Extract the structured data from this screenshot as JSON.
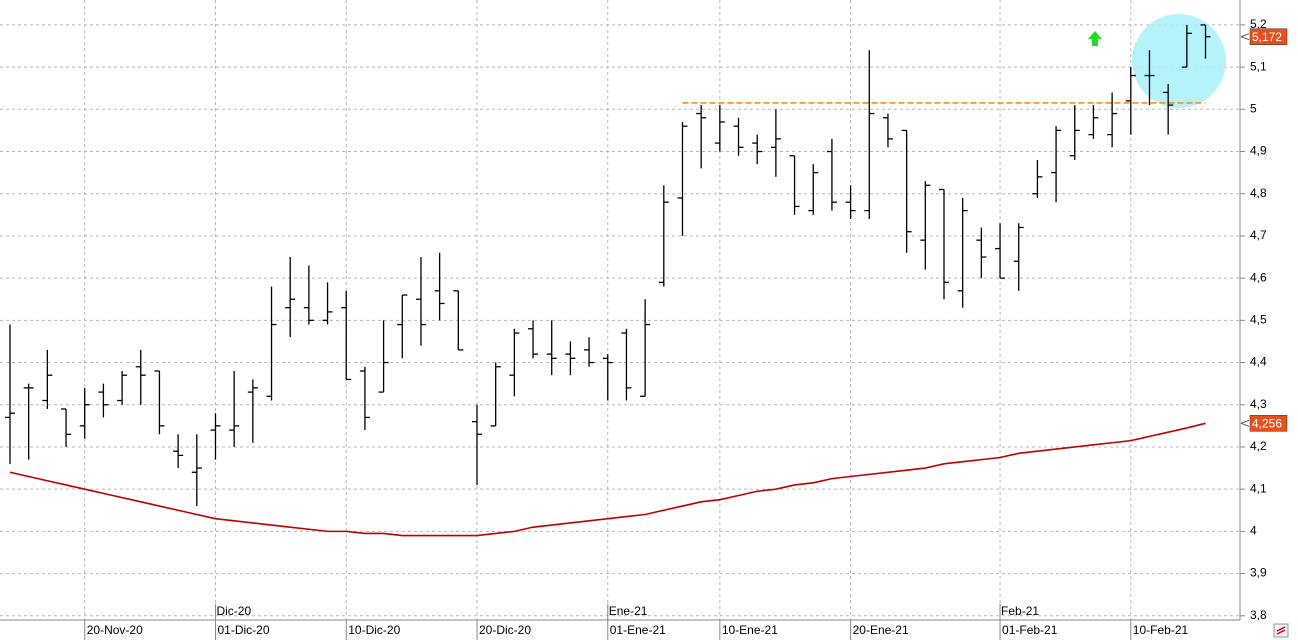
{
  "chart_data": {
    "type": "ohlc",
    "categories": [
      null,
      null,
      null,
      null,
      "20-Nov-20",
      null,
      null,
      null,
      null,
      null,
      null,
      "01-Dic-20",
      null,
      null,
      null,
      null,
      null,
      null,
      "10-Dic-20",
      null,
      null,
      null,
      null,
      null,
      null,
      "20-Dic-20",
      null,
      null,
      null,
      null,
      null,
      null,
      "01-Ene-21",
      null,
      null,
      null,
      null,
      null,
      "10-Ene-21",
      null,
      null,
      null,
      null,
      null,
      null,
      "20-Ene-21",
      null,
      null,
      null,
      null,
      null,
      null,
      null,
      "01-Feb-21",
      null,
      null,
      null,
      null,
      null,
      null,
      "10-Feb-21",
      null,
      null,
      null,
      null
    ],
    "month_labels": [
      null,
      null,
      null,
      null,
      null,
      null,
      null,
      null,
      null,
      null,
      null,
      "Dic-20",
      null,
      null,
      null,
      null,
      null,
      null,
      null,
      null,
      null,
      null,
      null,
      null,
      null,
      null,
      null,
      null,
      null,
      null,
      null,
      null,
      "Ene-21",
      null,
      null,
      null,
      null,
      null,
      null,
      null,
      null,
      null,
      null,
      null,
      null,
      null,
      null,
      null,
      null,
      null,
      null,
      null,
      null,
      "Feb-21",
      null,
      null,
      null,
      null,
      null,
      null,
      null,
      null,
      null,
      null,
      null
    ],
    "open": [
      4.27,
      4.34,
      4.31,
      4.29,
      4.25,
      4.33,
      4.31,
      4.39,
      4.38,
      4.19,
      4.14,
      4.24,
      4.24,
      4.33,
      4.32,
      4.53,
      4.53,
      4.5,
      4.53,
      4.38,
      4.33,
      4.49,
      4.55,
      4.57,
      4.57,
      4.26,
      4.25,
      4.37,
      4.48,
      4.42,
      4.42,
      4.43,
      4.41,
      4.47,
      4.32,
      4.59,
      4.79,
      4.99,
      4.92,
      4.96,
      4.92,
      4.91,
      4.89,
      4.76,
      4.9,
      4.78,
      4.76,
      4.98,
      4.95,
      4.69,
      4.81,
      4.57,
      4.69,
      4.67,
      4.64,
      4.8,
      4.85,
      4.89,
      4.94,
      4.94,
      5.02,
      5.08,
      5.04,
      5.1,
      5.2
    ],
    "high": [
      4.49,
      4.35,
      4.43,
      4.29,
      4.34,
      4.35,
      4.38,
      4.43,
      4.38,
      4.23,
      4.23,
      4.28,
      4.38,
      4.36,
      4.58,
      4.65,
      4.63,
      4.59,
      4.57,
      4.39,
      4.5,
      4.56,
      4.65,
      4.66,
      4.57,
      4.3,
      4.4,
      4.48,
      4.5,
      4.5,
      4.45,
      4.46,
      4.42,
      4.48,
      4.55,
      4.82,
      4.97,
      5.01,
      5.01,
      4.98,
      4.94,
      5.0,
      4.89,
      4.87,
      4.93,
      4.82,
      5.14,
      4.99,
      4.95,
      4.83,
      4.81,
      4.79,
      4.72,
      4.73,
      4.73,
      4.88,
      4.96,
      5.01,
      5.01,
      5.04,
      5.1,
      5.14,
      5.06,
      5.2,
      5.2
    ],
    "low": [
      4.16,
      4.17,
      4.29,
      4.2,
      4.22,
      4.27,
      4.3,
      4.3,
      4.23,
      4.15,
      4.06,
      4.17,
      4.2,
      4.21,
      4.31,
      4.46,
      4.49,
      4.49,
      4.36,
      4.24,
      4.33,
      4.41,
      4.44,
      4.5,
      4.43,
      4.11,
      4.25,
      4.32,
      4.41,
      4.37,
      4.37,
      4.39,
      4.31,
      4.31,
      4.32,
      4.58,
      4.7,
      4.86,
      4.9,
      4.89,
      4.87,
      4.84,
      4.75,
      4.75,
      4.76,
      4.74,
      4.74,
      4.91,
      4.66,
      4.62,
      4.55,
      4.53,
      4.6,
      4.6,
      4.57,
      4.79,
      4.78,
      4.88,
      4.93,
      4.91,
      4.94,
      5.01,
      4.94,
      5.1,
      5.12
    ],
    "close": [
      4.28,
      4.34,
      4.37,
      4.23,
      4.3,
      4.3,
      4.37,
      4.37,
      4.25,
      4.18,
      4.15,
      4.25,
      4.25,
      4.34,
      4.49,
      4.55,
      4.5,
      4.52,
      4.36,
      4.27,
      4.4,
      4.56,
      4.49,
      4.54,
      4.43,
      4.23,
      4.39,
      4.47,
      4.42,
      4.41,
      4.41,
      4.4,
      4.4,
      4.34,
      4.49,
      4.78,
      4.96,
      4.98,
      4.97,
      4.91,
      4.9,
      4.93,
      4.77,
      4.85,
      4.78,
      4.76,
      4.99,
      4.93,
      4.71,
      4.82,
      4.59,
      4.76,
      4.65,
      4.6,
      4.72,
      4.84,
      4.95,
      4.95,
      4.98,
      4.99,
      5.08,
      5.08,
      5.01,
      5.18,
      5.172
    ],
    "bar_color": "#000000",
    "lines": [
      {
        "color": "#c00000",
        "dashed": false,
        "values": [
          4.14,
          4.13,
          4.12,
          4.11,
          4.1,
          4.09,
          4.08,
          4.07,
          4.06,
          4.05,
          4.04,
          4.03,
          4.025,
          4.02,
          4.015,
          4.01,
          4.005,
          4.0,
          4.0,
          3.995,
          3.995,
          3.99,
          3.99,
          3.99,
          3.99,
          3.99,
          3.995,
          4.0,
          4.01,
          4.015,
          4.02,
          4.025,
          4.03,
          4.035,
          4.04,
          4.05,
          4.06,
          4.07,
          4.075,
          4.085,
          4.095,
          4.1,
          4.11,
          4.115,
          4.125,
          4.13,
          4.135,
          4.14,
          4.145,
          4.15,
          4.16,
          4.165,
          4.17,
          4.175,
          4.185,
          4.19,
          4.195,
          4.2,
          4.205,
          4.21,
          4.215,
          4.225,
          4.235,
          4.245,
          4.256
        ]
      },
      {
        "color": "#ff8c1a",
        "dashed": true,
        "values": [
          null,
          null,
          null,
          null,
          null,
          null,
          null,
          null,
          null,
          null,
          null,
          null,
          null,
          null,
          null,
          null,
          null,
          null,
          null,
          null,
          null,
          null,
          null,
          null,
          null,
          null,
          null,
          null,
          null,
          null,
          null,
          null,
          null,
          null,
          null,
          null,
          5.015,
          5.015,
          5.015,
          5.015,
          5.015,
          5.015,
          5.015,
          5.015,
          5.015,
          5.015,
          5.015,
          5.015,
          5.015,
          5.015,
          5.015,
          5.015,
          5.015,
          5.015,
          5.015,
          5.015,
          5.015,
          5.015,
          5.015,
          5.015,
          5.015,
          5.015,
          5.015,
          5.015,
          5.015
        ]
      }
    ],
    "price_tags": [
      {
        "value": 5.172,
        "label": "5,172"
      },
      {
        "value": 4.256,
        "label": "4,256"
      }
    ],
    "price_tag_color": "#e8501e",
    "ylim": [
      3.79,
      5.259
    ],
    "yticks": [
      {
        "value": 3.8,
        "label": "3,8"
      },
      {
        "value": 3.9,
        "label": "3,9"
      },
      4,
      {
        "value": 4.1,
        "label": "4,1"
      },
      {
        "value": 4.2,
        "label": "4,2"
      },
      {
        "value": 4.3,
        "label": "4,3"
      },
      {
        "value": 4.4,
        "label": "4,4"
      },
      {
        "value": 4.5,
        "label": "4,5"
      },
      {
        "value": 4.6,
        "label": "4,6"
      },
      {
        "value": 4.7,
        "label": "4,7"
      },
      {
        "value": 4.8,
        "label": "4,8"
      },
      {
        "value": 4.9,
        "label": "4,9"
      },
      5,
      {
        "value": 5.1,
        "label": "5,1"
      },
      {
        "value": 5.2,
        "label": "5,2"
      }
    ],
    "grid": true
  }
}
